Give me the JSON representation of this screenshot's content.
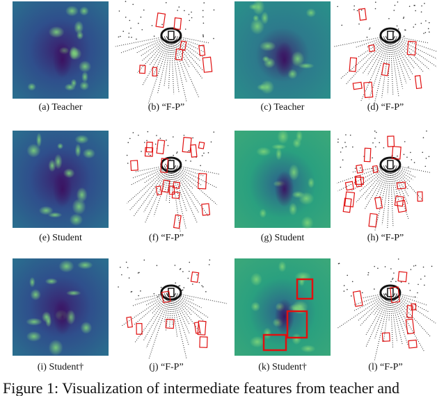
{
  "panels": [
    {
      "caption": "(a) Teacher"
    },
    {
      "caption": "(b) “F-P”"
    },
    {
      "caption": "(c) Teacher"
    },
    {
      "caption": "(d) “F-P”"
    },
    {
      "caption": "(e) Student"
    },
    {
      "caption": "(f) “F-P”"
    },
    {
      "caption": "(g) Student"
    },
    {
      "caption": "(h) “F-P”"
    },
    {
      "caption": "(i) Student†"
    },
    {
      "caption": "(j) “F-P”"
    },
    {
      "caption": "(k) Student†"
    },
    {
      "caption": "(l) “F-P”"
    }
  ],
  "figure_caption": "Figure 1: Visualization of intermediate features from teacher and"
}
